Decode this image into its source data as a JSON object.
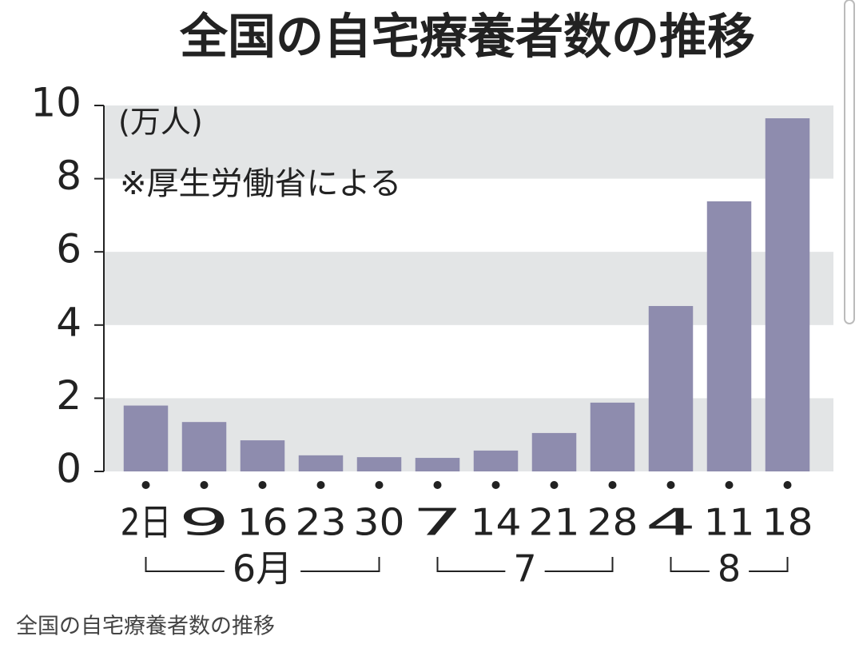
{
  "chart_data": {
    "type": "bar",
    "title": "全国の自宅療養者数の推移",
    "unit": "(万人)",
    "source": "※厚生労働省による",
    "categories": [
      "2日",
      "9",
      "16",
      "23",
      "30",
      "7",
      "14",
      "21",
      "28",
      "4",
      "11",
      "18"
    ],
    "values": [
      1.8,
      1.35,
      0.85,
      0.44,
      0.39,
      0.37,
      0.57,
      1.05,
      1.88,
      4.52,
      7.38,
      9.65
    ],
    "groups": [
      {
        "label": "6月",
        "count": 5
      },
      {
        "label": "7",
        "count": 4
      },
      {
        "label": "8",
        "count": 3
      }
    ],
    "color": "#8e8cae",
    "band_color": "#e3e5e6",
    "grid": "bands",
    "ylim": [
      0,
      10
    ],
    "yticks": [
      0,
      2,
      4,
      6,
      8,
      10
    ]
  },
  "caption": "全国の自宅療養者数の推移"
}
